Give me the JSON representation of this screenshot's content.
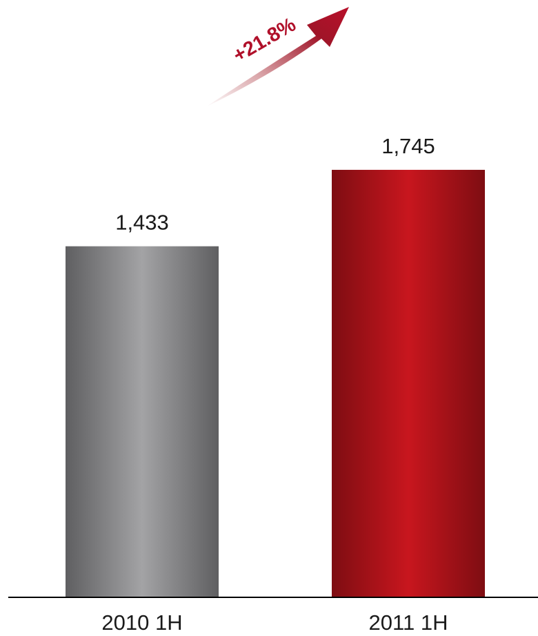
{
  "chart_data": {
    "type": "bar",
    "categories": [
      "2010 1H",
      "2011 1H"
    ],
    "values": [
      1433,
      1745
    ],
    "value_labels": [
      "1,433",
      "1,745"
    ],
    "annotation": "+21.8%",
    "bar_colors": [
      "#a3a3a5",
      "#c8161e"
    ],
    "ylim": [
      0,
      2100
    ],
    "grid": false,
    "legend": "none"
  }
}
